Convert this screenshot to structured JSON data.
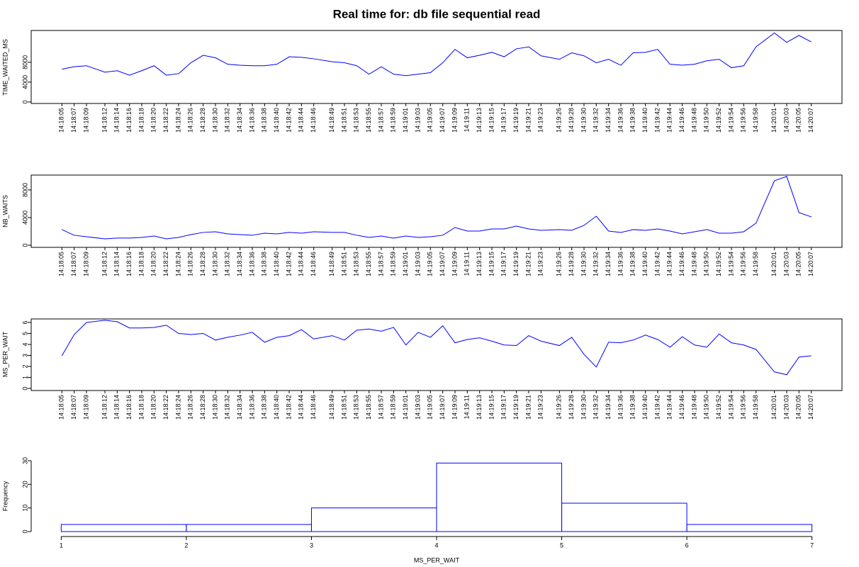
{
  "title": "Real time for: db file sequential read",
  "chart_data": [
    {
      "type": "line",
      "ylabel": "TIME_WAITED_MS",
      "color": "#0000ff",
      "x": [
        "14:18:05",
        "14:18:07",
        "14:18:09",
        "14:18:12",
        "14:18:14",
        "14:18:16",
        "14:18:18",
        "14:18:20",
        "14:18:22",
        "14:18:24",
        "14:18:26",
        "14:18:28",
        "14:18:30",
        "14:18:32",
        "14:18:34",
        "14:18:36",
        "14:18:38",
        "14:18:40",
        "14:18:42",
        "14:18:44",
        "14:18:46",
        "14:18:49",
        "14:18:51",
        "14:18:53",
        "14:18:55",
        "14:18:57",
        "14:18:59",
        "14:19:01",
        "14:19:03",
        "14:19:05",
        "14:19:07",
        "14:19:09",
        "14:19:11",
        "14:19:13",
        "14:19:15",
        "14:19:17",
        "14:19:19",
        "14:19:21",
        "14:19:23",
        "14:19:26",
        "14:19:28",
        "14:19:30",
        "14:19:32",
        "14:19:34",
        "14:19:36",
        "14:19:38",
        "14:19:40",
        "14:19:42",
        "14:19:44",
        "14:19:46",
        "14:19:48",
        "14:19:50",
        "14:19:52",
        "14:19:54",
        "14:19:56",
        "14:19:58",
        "14:20:01",
        "14:20:03",
        "14:20:05",
        "14:20:07"
      ],
      "values": [
        6600,
        7100,
        7300,
        6000,
        6300,
        5400,
        6300,
        7300,
        5400,
        5700,
        7900,
        9400,
        8900,
        7600,
        7400,
        7300,
        7300,
        7600,
        9100,
        9000,
        8700,
        8100,
        7900,
        7300,
        5600,
        7100,
        5600,
        5300,
        5600,
        5900,
        7900,
        10600,
        8900,
        9400,
        10000,
        9100,
        10700,
        11100,
        9300,
        8600,
        9900,
        9300,
        7900,
        8600,
        7400,
        9900,
        10000,
        10600,
        7600,
        7400,
        7600,
        8300,
        8600,
        6900,
        7300,
        11100,
        13900,
        12000,
        13400,
        12100
      ],
      "xlim": [
        "14:18:00",
        "14:20:12"
      ],
      "ylim": [
        -300,
        14400
      ],
      "yticks": [
        0,
        4000,
        8000
      ]
    },
    {
      "type": "line",
      "ylabel": "NB_WAITS",
      "color": "#0000ff",
      "x": [
        "14:18:05",
        "14:18:07",
        "14:18:09",
        "14:18:12",
        "14:18:14",
        "14:18:16",
        "14:18:18",
        "14:18:20",
        "14:18:22",
        "14:18:24",
        "14:18:26",
        "14:18:28",
        "14:18:30",
        "14:18:32",
        "14:18:34",
        "14:18:36",
        "14:18:38",
        "14:18:40",
        "14:18:42",
        "14:18:44",
        "14:18:46",
        "14:18:49",
        "14:18:51",
        "14:18:53",
        "14:18:55",
        "14:18:57",
        "14:18:59",
        "14:19:01",
        "14:19:03",
        "14:19:05",
        "14:19:07",
        "14:19:09",
        "14:19:11",
        "14:19:13",
        "14:19:15",
        "14:19:17",
        "14:19:19",
        "14:19:21",
        "14:19:23",
        "14:19:26",
        "14:19:28",
        "14:19:30",
        "14:19:32",
        "14:19:34",
        "14:19:36",
        "14:19:38",
        "14:19:40",
        "14:19:42",
        "14:19:44",
        "14:19:46",
        "14:19:48",
        "14:19:50",
        "14:19:52",
        "14:19:54",
        "14:19:56",
        "14:19:58",
        "14:20:01",
        "14:20:03",
        "14:20:05",
        "14:20:07"
      ],
      "values": [
        2260,
        1440,
        1230,
        920,
        1030,
        1030,
        1130,
        1330,
        920,
        1130,
        1540,
        1850,
        1950,
        1640,
        1540,
        1440,
        1740,
        1640,
        1850,
        1740,
        1950,
        1850,
        1850,
        1440,
        1130,
        1330,
        1030,
        1330,
        1130,
        1230,
        1440,
        2560,
        2050,
        2050,
        2360,
        2360,
        2770,
        2360,
        2150,
        2260,
        2150,
        2870,
        4200,
        2050,
        1850,
        2260,
        2150,
        2360,
        2050,
        1640,
        1950,
        2260,
        1740,
        1740,
        1950,
        3180,
        9330,
        9950,
        4720,
        4100
      ],
      "xlim": [
        "14:18:00",
        "14:20:12"
      ],
      "ylim": [
        -310,
        10150
      ],
      "yticks": [
        0,
        4000,
        8000
      ]
    },
    {
      "type": "line",
      "ylabel": "MS_PER_WAIT",
      "color": "#0000ff",
      "x": [
        "14:18:05",
        "14:18:07",
        "14:18:09",
        "14:18:12",
        "14:18:14",
        "14:18:16",
        "14:18:18",
        "14:18:20",
        "14:18:22",
        "14:18:24",
        "14:18:26",
        "14:18:28",
        "14:18:30",
        "14:18:32",
        "14:18:34",
        "14:18:36",
        "14:18:38",
        "14:18:40",
        "14:18:42",
        "14:18:44",
        "14:18:46",
        "14:18:49",
        "14:18:51",
        "14:18:53",
        "14:18:55",
        "14:18:57",
        "14:18:59",
        "14:19:01",
        "14:19:03",
        "14:19:05",
        "14:19:07",
        "14:19:09",
        "14:19:11",
        "14:19:13",
        "14:19:15",
        "14:19:17",
        "14:19:19",
        "14:19:21",
        "14:19:23",
        "14:19:26",
        "14:19:28",
        "14:19:30",
        "14:19:32",
        "14:19:34",
        "14:19:36",
        "14:19:38",
        "14:19:40",
        "14:19:42",
        "14:19:44",
        "14:19:46",
        "14:19:48",
        "14:19:50",
        "14:19:52",
        "14:19:54",
        "14:19:56",
        "14:19:58",
        "14:20:01",
        "14:20:03",
        "14:20:05",
        "14:20:07"
      ],
      "values": [
        2.97,
        4.9,
        6.0,
        6.2,
        6.07,
        5.5,
        5.5,
        5.55,
        5.75,
        5.0,
        4.9,
        5.0,
        4.4,
        4.65,
        4.85,
        5.1,
        4.2,
        4.65,
        4.8,
        5.35,
        4.5,
        4.8,
        4.4,
        5.3,
        5.4,
        5.2,
        5.55,
        3.95,
        5.1,
        4.65,
        5.7,
        4.15,
        4.45,
        4.6,
        4.3,
        3.95,
        3.9,
        4.8,
        4.3,
        3.9,
        4.65,
        3.1,
        1.95,
        4.2,
        4.15,
        4.4,
        4.85,
        4.45,
        3.75,
        4.7,
        3.95,
        3.75,
        4.95,
        4.15,
        3.95,
        3.55,
        1.5,
        1.25,
        2.85,
        2.97
      ],
      "xlim": [
        "14:18:00",
        "14:20:12"
      ],
      "ylim": [
        -0.19,
        6.32
      ],
      "yticks": [
        0,
        1,
        2,
        3,
        4,
        5,
        6
      ]
    },
    {
      "type": "histogram",
      "xlabel": "MS_PER_WAIT",
      "ylabel": "Frequency",
      "color": "#0000ff",
      "bins": [
        1,
        2,
        3,
        4,
        5,
        6,
        7
      ],
      "values": [
        3,
        3,
        10,
        29,
        12,
        3
      ],
      "xlim": [
        0.76,
        7.24
      ],
      "ylim": [
        0,
        30
      ],
      "xticks": [
        1,
        2,
        3,
        4,
        5,
        6,
        7
      ],
      "yticks": [
        0,
        10,
        20,
        30
      ]
    }
  ]
}
